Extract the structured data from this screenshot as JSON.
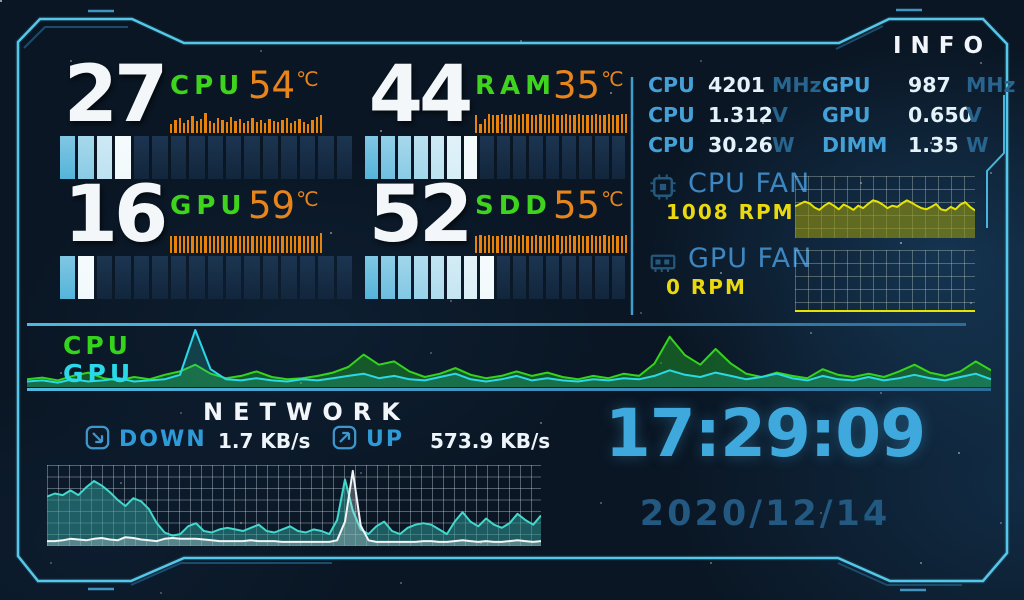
{
  "colors": {
    "accent_cyan": "#55c7e9",
    "label_green": "#3ed41e",
    "temp_orange": "#e8841c",
    "histogram_orange": "#e8820a",
    "fan_yellow": "#ead810",
    "clock_blue": "#3fa9dd",
    "info_label_blue": "#44a0d6",
    "unit_blue": "#27648e",
    "net_label_blue": "#2f9ad8"
  },
  "gauges": [
    {
      "label": "CPU",
      "value": 27,
      "temp": "54",
      "temp_unit": "℃",
      "segments": 16,
      "histogram": [
        45,
        60,
        72,
        50,
        64,
        82,
        55,
        68,
        95,
        58,
        48,
        72,
        62,
        52,
        78,
        58,
        66,
        48,
        58,
        72,
        52,
        62,
        48,
        66,
        58,
        52,
        62,
        72,
        48,
        58,
        66,
        52,
        44,
        62,
        78,
        88
      ]
    },
    {
      "label": "RAM",
      "value": 44,
      "temp": "35",
      "temp_unit": "℃",
      "segments": 16,
      "histogram": [
        88,
        45,
        65,
        92,
        85,
        88,
        90,
        86,
        88,
        90,
        87,
        89,
        90,
        86,
        88,
        90,
        87,
        86,
        90,
        88,
        87,
        90,
        86,
        88,
        90,
        87,
        88,
        86,
        90,
        88,
        86,
        90,
        88,
        87,
        90,
        89
      ]
    },
    {
      "label": "GPU",
      "value": 16,
      "temp": "59",
      "temp_unit": "℃",
      "segments": 16,
      "histogram": [
        80,
        82,
        80,
        83,
        81,
        80,
        82,
        80,
        81,
        83,
        80,
        82,
        81,
        80,
        82,
        80,
        81,
        83,
        80,
        82,
        80,
        81,
        82,
        80,
        83,
        81,
        80,
        82,
        80,
        81,
        83,
        80,
        82,
        81,
        80,
        95
      ]
    },
    {
      "label": "SDD",
      "value": 52,
      "temp": "55",
      "temp_unit": "℃",
      "segments": 16,
      "histogram": [
        82,
        84,
        82,
        85,
        83,
        82,
        84,
        82,
        83,
        85,
        82,
        84,
        83,
        82,
        84,
        82,
        83,
        85,
        82,
        84,
        82,
        83,
        84,
        82,
        85,
        83,
        82,
        84,
        82,
        83,
        85,
        82,
        84,
        83,
        82,
        84
      ]
    }
  ],
  "info": {
    "title": "INFO",
    "rows": [
      {
        "l1": "CPU",
        "v1": "4201",
        "u1": "MHz",
        "l2": "GPU",
        "v2": "987",
        "u2": "MHz"
      },
      {
        "l1": "CPU",
        "v1": "1.312",
        "u1": "V",
        "l2": "GPU",
        "v2": "0.650",
        "u2": "V"
      },
      {
        "l1": "CPU",
        "v1": "30.26",
        "u1": "W",
        "l2": "DIMM",
        "v2": "1.35",
        "u2": "W"
      }
    ]
  },
  "fans": [
    {
      "label": "CPU FAN",
      "rpm": "1008 RPM"
    },
    {
      "label": "GPU FAN",
      "rpm": "0 RPM"
    }
  ],
  "usage": {
    "cpu_label": "CPU",
    "gpu_label": "GPU"
  },
  "network": {
    "title": "NETWORK",
    "down_label": "DOWN",
    "down_value": "1.7 KB/s",
    "up_label": "UP",
    "up_value": "573.9 KB/s"
  },
  "clock": {
    "time": "17:29:09",
    "date": "2020/12/14"
  },
  "chart_data": {
    "usage": {
      "type": "area",
      "ylim": [
        0,
        100
      ],
      "grid": false,
      "legend": "left-inside",
      "series": [
        {
          "name": "CPU",
          "color": "#35d41c",
          "fill": "rgba(30,150,40,0.50)",
          "values": [
            12,
            15,
            10,
            18,
            24,
            14,
            10,
            16,
            12,
            20,
            26,
            38,
            22,
            14,
            18,
            26,
            16,
            12,
            14,
            18,
            24,
            34,
            56,
            38,
            44,
            26,
            16,
            22,
            32,
            20,
            14,
            18,
            26,
            18,
            24,
            16,
            12,
            18,
            14,
            22,
            18,
            40,
            88,
            55,
            38,
            66,
            40,
            22,
            16,
            24,
            18,
            14,
            30,
            20,
            16,
            22,
            16,
            26,
            38,
            24,
            18,
            26,
            44,
            28
          ]
        },
        {
          "name": "GPU",
          "color": "#2ad8e8",
          "fill": "rgba(42,200,190,0.22)",
          "values": [
            8,
            10,
            6,
            12,
            8,
            10,
            14,
            8,
            10,
            12,
            20,
            100,
            30,
            12,
            10,
            14,
            10,
            8,
            12,
            10,
            14,
            18,
            22,
            14,
            18,
            12,
            10,
            16,
            22,
            12,
            8,
            12,
            18,
            10,
            14,
            10,
            8,
            12,
            10,
            14,
            12,
            18,
            28,
            20,
            16,
            24,
            18,
            12,
            16,
            22,
            14,
            10,
            18,
            12,
            10,
            16,
            10,
            14,
            20,
            14,
            10,
            16,
            22,
            12
          ]
        }
      ]
    },
    "cpu_fan": {
      "type": "area",
      "ylim": [
        0,
        100
      ],
      "grid": true,
      "series": [
        {
          "name": "CPU FAN RPM",
          "color": "#e8e400",
          "fill": "rgba(150,150,12,0.60)",
          "values": [
            52,
            56,
            60,
            57,
            50,
            46,
            53,
            58,
            53,
            47,
            55,
            51,
            46,
            53,
            49,
            56,
            62,
            60,
            55,
            49,
            53,
            51,
            57,
            62,
            58,
            53,
            49,
            47,
            51,
            56,
            47,
            45,
            51,
            47,
            55,
            59,
            51,
            45
          ]
        }
      ]
    },
    "gpu_fan": {
      "type": "area",
      "ylim": [
        0,
        100
      ],
      "grid": true,
      "series": [
        {
          "name": "GPU FAN RPM",
          "color": "#e8e400",
          "fill": "rgba(150,150,12,0.60)",
          "values": [
            0,
            0,
            0,
            0,
            0,
            0,
            0,
            0,
            0,
            0,
            0,
            0,
            0,
            0,
            0,
            0,
            0,
            0,
            0,
            0,
            0,
            0,
            0,
            0,
            0,
            0,
            0,
            0,
            0,
            0,
            0,
            0,
            0,
            0,
            0,
            0,
            0,
            0
          ]
        }
      ]
    },
    "network": {
      "type": "area",
      "ylim": [
        0,
        100
      ],
      "grid": true,
      "series": [
        {
          "name": "DOWN",
          "color": "#42d8cc",
          "fill": "rgba(45,150,145,0.55)",
          "values": [
            62,
            66,
            64,
            70,
            64,
            74,
            82,
            76,
            68,
            58,
            50,
            60,
            56,
            46,
            28,
            16,
            12,
            14,
            24,
            28,
            18,
            16,
            20,
            22,
            20,
            18,
            22,
            26,
            18,
            16,
            20,
            24,
            18,
            16,
            20,
            18,
            14,
            32,
            84,
            44,
            20,
            14,
            24,
            30,
            18,
            14,
            22,
            26,
            28,
            26,
            20,
            14,
            30,
            42,
            30,
            24,
            34,
            26,
            22,
            28,
            40,
            32,
            26,
            38
          ]
        },
        {
          "name": "UP",
          "color": "#f2f5f5",
          "fill": "rgba(235,242,245,0.28)",
          "values": [
            5,
            5,
            6,
            8,
            7,
            6,
            8,
            9,
            7,
            6,
            10,
            9,
            7,
            6,
            5,
            8,
            9,
            8,
            8,
            8,
            7,
            6,
            5,
            5,
            5,
            5,
            6,
            5,
            5,
            5,
            4,
            4,
            4,
            4,
            4,
            4,
            4,
            6,
            30,
            95,
            25,
            6,
            4,
            4,
            4,
            4,
            4,
            4,
            5,
            5,
            4,
            4,
            5,
            6,
            5,
            4,
            5,
            4,
            4,
            5,
            6,
            5,
            4,
            5
          ]
        }
      ]
    }
  }
}
